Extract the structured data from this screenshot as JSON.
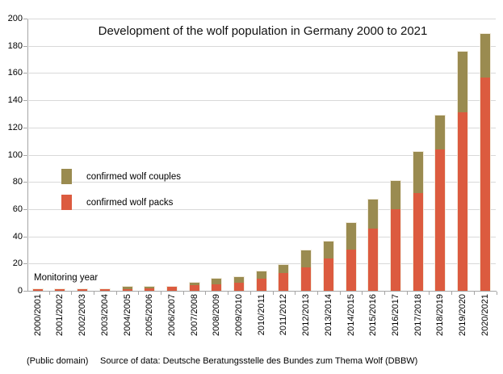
{
  "title": "Development of the wolf population in Germany 2000 to 2021",
  "chart_data": {
    "type": "bar",
    "stacked": true,
    "title": "Development of the wolf population in Germany 2000 to 2021",
    "categories": [
      "2000/2001",
      "2001/2002",
      "2002/2003",
      "2003/2004",
      "2004/2005",
      "2005/2006",
      "2006/2007",
      "2007/2008",
      "2008/2009",
      "2009/2010",
      "2010/2011",
      "2011/2012",
      "2012/2013",
      "2013/2014",
      "2014/2015",
      "2015/2016",
      "2016/2017",
      "2017/2018",
      "2018/2019",
      "2019/2020",
      "2020/2021"
    ],
    "series": [
      {
        "name": "confirmed wolf packs",
        "color": "#dc5b3f",
        "values": [
          1,
          1,
          1,
          1,
          1,
          2,
          3,
          4,
          5,
          6,
          9,
          13,
          17,
          24,
          30,
          46,
          60,
          72,
          104,
          131,
          157
        ]
      },
      {
        "name": "confirmed wolf couples",
        "color": "#9a8b50",
        "values": [
          0,
          0,
          0,
          0,
          2,
          1,
          0,
          2,
          4,
          4,
          5,
          6,
          13,
          12,
          20,
          21,
          21,
          30,
          25,
          45,
          32
        ]
      }
    ],
    "totals": [
      1,
      1,
      1,
      1,
      3,
      3,
      3,
      6,
      9,
      10,
      14,
      19,
      30,
      36,
      50,
      67,
      81,
      102,
      129,
      176,
      189
    ],
    "xlabel": "Monitoring year",
    "ylabel": "",
    "ylim": [
      0,
      200
    ],
    "ytick_step": 20,
    "y_tick_labels": [
      "0",
      "20",
      "40",
      "60",
      "80",
      "100",
      "120",
      "140",
      "160",
      "180",
      "200"
    ],
    "grid": true,
    "legend_position": "middle-left"
  },
  "legend": {
    "couples_label": "confirmed wolf couples",
    "packs_label": "confirmed wolf packs"
  },
  "footer": {
    "license": "(Public domain)",
    "source": "Source of data: Deutsche Beratungsstelle des Bundes zum Thema Wolf (DBBW)"
  },
  "colors": {
    "packs": "#dc5b3f",
    "couples": "#9a8b50",
    "gridline": "#d9d9d9",
    "axis": "#a6a6a6",
    "text": "#000000"
  }
}
